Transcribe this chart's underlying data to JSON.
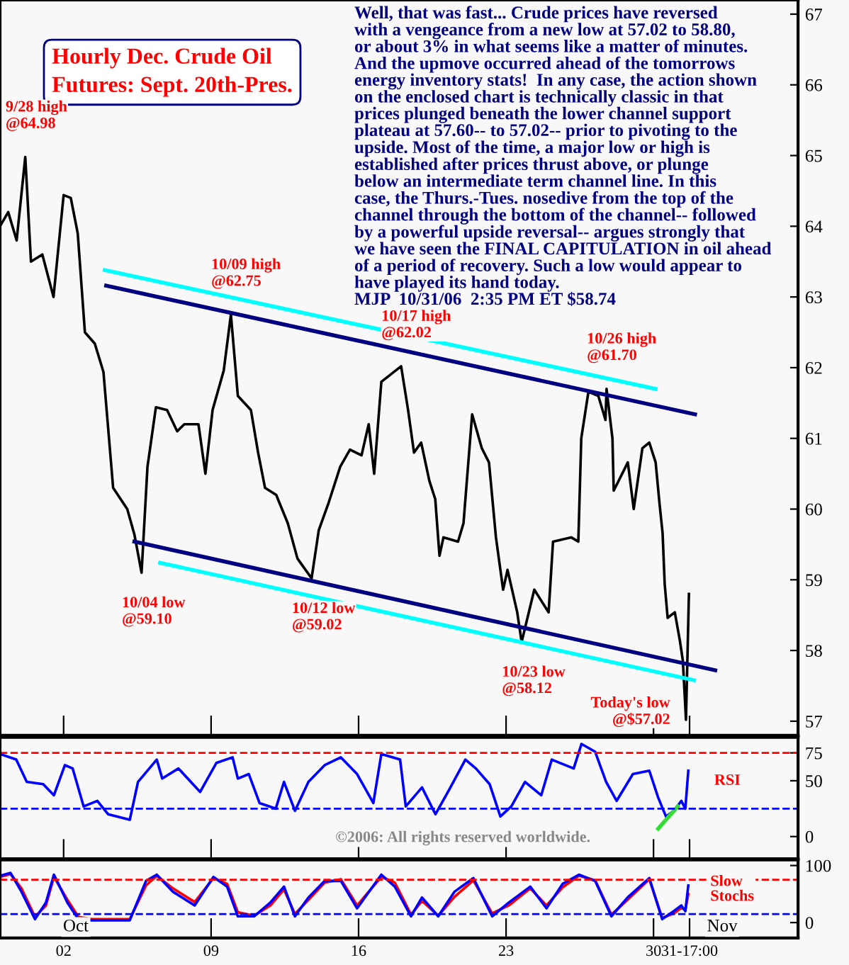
{
  "chart_data": [
    {
      "type": "line",
      "title": "Hourly Dec. Crude Oil\nFutures: Sept. 20th-Pres.",
      "xlim": [
        -1.02,
        36.86
      ],
      "ylim": [
        56.8,
        67.2
      ],
      "yticks": [
        57,
        58,
        59,
        60,
        61,
        62,
        63,
        64,
        65,
        66,
        67
      ],
      "tick_labels": "y",
      "xticks": [
        2,
        9,
        16,
        23,
        30,
        31.71
      ],
      "x": [
        -1.02,
        -0.63,
        -0.23,
        0.18,
        0.45,
        0.99,
        1.52,
        2,
        2.34,
        2.67,
        3.01,
        3.48,
        3.89,
        4.35,
        5.02,
        5.36,
        5.7,
        5.98,
        6.38,
        6.91,
        7.39,
        7.73,
        8.4,
        8.73,
        9.07,
        9.6,
        9.94,
        10.27,
        10.89,
        11.23,
        11.56,
        12.09,
        12.64,
        13.1,
        13.77,
        14.11,
        14.59,
        15.13,
        15.59,
        16.14,
        16.48,
        16.74,
        17.08,
        17.68,
        18.02,
        18.35,
        18.63,
        18.97,
        19.36,
        19.64,
        19.84,
        20.03,
        20.72,
        20.98,
        21.39,
        21.85,
        22.19,
        22.52,
        22.86,
        23.07,
        23.53,
        23.74,
        24.34,
        25.02,
        25.23,
        26.09,
        26.43,
        26.57,
        26.91,
        27.38,
        27.72,
        27.77,
        28.05,
        28.11,
        28.78,
        29.06,
        29.47,
        29.8,
        30.1,
        30.29,
        30.43,
        30.53,
        30.67,
        31.01,
        31.25,
        31.39,
        31.54,
        31.68
      ],
      "series": [
        {
          "color": "#000000",
          "values": [
            64.0,
            64.2,
            63.8,
            64.98,
            63.5,
            63.6,
            63.0,
            64.44,
            64.4,
            63.9,
            62.5,
            62.34,
            61.94,
            60.3,
            60.0,
            59.64,
            59.1,
            60.6,
            61.44,
            61.4,
            61.1,
            61.2,
            61.2,
            60.5,
            61.4,
            61.96,
            62.75,
            61.6,
            61.4,
            60.8,
            60.3,
            60.2,
            59.8,
            59.3,
            59.02,
            59.7,
            60.1,
            60.6,
            60.84,
            60.76,
            61.2,
            60.5,
            61.8,
            61.94,
            62.02,
            61.4,
            60.8,
            60.94,
            60.4,
            60.14,
            59.34,
            59.6,
            59.54,
            59.8,
            61.34,
            60.86,
            60.66,
            59.6,
            58.86,
            59.14,
            58.54,
            58.12,
            58.86,
            58.54,
            59.54,
            59.6,
            59.54,
            61.0,
            61.66,
            61.6,
            61.26,
            61.7,
            61.0,
            60.26,
            60.66,
            60.0,
            60.86,
            60.94,
            60.66,
            60.06,
            59.66,
            58.94,
            58.46,
            58.54,
            58.14,
            57.86,
            57.02,
            58.8
          ]
        },
        {
          "color": "#00ffff",
          "x": [
            3.95,
            30.1
          ],
          "values": [
            63.38,
            61.7
          ]
        },
        {
          "color": "#000080",
          "x": [
            4.02,
            31.97
          ],
          "values": [
            63.16,
            61.34
          ]
        },
        {
          "color": "#00ffff",
          "x": [
            6.58,
            31.92
          ],
          "values": [
            59.24,
            57.58
          ]
        },
        {
          "color": "#000080",
          "x": [
            5.36,
            32.93
          ],
          "values": [
            59.54,
            57.72
          ]
        }
      ],
      "annotations": [
        "Well, that was fast... Crude prices have reversed\nwith a vengeance from a new low at 57.02 to 58.80,\nor about 3% in what seems like a matter of minutes.\nAnd the upmove occurred ahead of the tomorrows\nenergy inventory stats!  In any case, the action shown\non the enclosed chart is technically classic in that\nprices plunged beneath the lower channel support\nplateau at 57.60-- to 57.02-- prior to pivoting to the\nupside. Most of the time, a major low or high is\nestablished after prices thrust above, or plunge\nbelow an intermediate term channel line. In this\ncase, the Thurs.-Tues. nosedive from the top of the\nchannel through the bottom of the channel-- followed\nby a powerful upside reversal-- argues strongly that\nwe have seen the FINAL CAPITULATION in oil ahead\nof a period of recovery. Such a low would appear to\nhave played its hand today.\nMJP  10/31/06  2:35 PM ET $58.74",
        {
          "text": "9/28 high\n@64.98",
          "x": 0.18,
          "y": 64.98
        },
        {
          "text": "10/04 low\n@59.10",
          "x": 5.7,
          "y": 59.1
        },
        {
          "text": "10/09 high\n@62.75",
          "x": 9.94,
          "y": 62.75
        },
        {
          "text": "10/12 low\n@59.02",
          "x": 13.77,
          "y": 59.02
        },
        {
          "text": "10/17 high\n@62.02",
          "x": 18.02,
          "y": 62.02
        },
        {
          "text": "10/23 low\n@58.12",
          "x": 23.74,
          "y": 58.12
        },
        {
          "text": "10/26 high\n@61.70",
          "x": 27.77,
          "y": 61.7
        },
        {
          "text": "Today's low\n@$57.02",
          "x": 31.54,
          "y": 57.02
        }
      ]
    },
    {
      "type": "line",
      "xlim": [
        -1.02,
        36.86
      ],
      "ylim": [
        -20,
        89
      ],
      "yticks": [
        0,
        50,
        75
      ],
      "tick_labels": "y",
      "xticks": [
        2,
        9,
        16,
        23,
        30,
        31.71
      ],
      "x": [
        -1.02,
        -0.25,
        0.25,
        1.03,
        1.54,
        2.06,
        2.43,
        2.95,
        3.6,
        4.11,
        5.14,
        5.53,
        6.42,
        6.68,
        7.45,
        8.48,
        9.25,
        10.02,
        10.27,
        10.79,
        11.3,
        12.07,
        12.46,
        12.98,
        13.62,
        14.39,
        15.16,
        15.93,
        16.7,
        17.08,
        17.97,
        18.24,
        19.01,
        19.65,
        20.3,
        21.07,
        21.57,
        22.22,
        22.73,
        23.25,
        23.9,
        24.67,
        25.17,
        26.21,
        26.58,
        27.23,
        27.75,
        28.25,
        29.02,
        29.8,
        30.22,
        30.59,
        30.96,
        31.32,
        31.51,
        31.65
      ],
      "series": [
        {
          "color": "#0000ff",
          "values": [
            74,
            69,
            49,
            47,
            37,
            64,
            61,
            27,
            32,
            20,
            15,
            49,
            69,
            52,
            61,
            40,
            66,
            71,
            52,
            56,
            30,
            25,
            49,
            23,
            49,
            64,
            71,
            56,
            30,
            74,
            69,
            27,
            44,
            20,
            42,
            69,
            61,
            47,
            18,
            27,
            49,
            37,
            69,
            61,
            83,
            76,
            49,
            32,
            56,
            59,
            35,
            18,
            23,
            32,
            25,
            59
          ]
        },
        {
          "color": "#33dd33",
          "x": [
            30.22,
            31.15
          ],
          "values": [
            7,
            27
          ]
        }
      ],
      "ref_lines": [
        {
          "axis": "y",
          "value": 75,
          "color": "#ff0000",
          "line_style": "dashed"
        },
        {
          "axis": "y",
          "value": 25,
          "color": "#0000ff",
          "line_style": "dashed"
        }
      ],
      "annotations": [
        "RSI",
        "©2006: All rights reserved worldwide."
      ]
    },
    {
      "type": "line",
      "xlim": [
        -1.02,
        36.86
      ],
      "ylim": [
        -27,
        110
      ],
      "yticks": [
        0,
        100
      ],
      "xticks": [
        {
          "value": 2,
          "label": "02"
        },
        {
          "value": 9,
          "label": "09"
        },
        16,
        23,
        30,
        {
          "value": 31.71,
          "label": "31-17:00"
        }
      ],
      "x": [
        -1.02,
        -0.52,
        0,
        0.64,
        1.16,
        1.54,
        2.18,
        2.7,
        3.34,
        5.14,
        5.91,
        6.42,
        7.19,
        8.22,
        9.11,
        9.76,
        10.27,
        11.04,
        11.81,
        12.46,
        12.98,
        13.62,
        14.39,
        15.16,
        15.93,
        17.08,
        17.72,
        18.49,
        19.01,
        19.78,
        20.55,
        21.45,
        22.34,
        23.13,
        24.15,
        24.92,
        25.69,
        26.46,
        27.23,
        28.0,
        28.77,
        29.8,
        30.41,
        30.96,
        31.32,
        31.51,
        31.65
      ],
      "series": [
        {
          "color": "#ff0000",
          "values": [
            80,
            85,
            60,
            10,
            30,
            80,
            40,
            10,
            6,
            6,
            65,
            82,
            60,
            36,
            78,
            68,
            18,
            12,
            30,
            58,
            15,
            40,
            70,
            76,
            30,
            80,
            70,
            14,
            38,
            12,
            45,
            74,
            16,
            30,
            60,
            30,
            62,
            82,
            74,
            14,
            40,
            76,
            8,
            16,
            26,
            22,
            50
          ]
        },
        {
          "color": "#0000ff",
          "values": [
            82,
            87,
            54,
            6,
            35,
            84,
            35,
            6,
            4,
            4,
            73,
            84,
            54,
            30,
            80,
            63,
            11,
            11,
            35,
            63,
            11,
            44,
            73,
            73,
            25,
            84,
            63,
            11,
            44,
            11,
            54,
            78,
            11,
            35,
            63,
            25,
            68,
            84,
            73,
            11,
            44,
            78,
            6,
            20,
            30,
            20,
            65
          ]
        }
      ],
      "ref_lines": [
        {
          "axis": "y",
          "value": 75,
          "color": "#ff0000",
          "line_style": "dashed"
        },
        {
          "axis": "y",
          "value": 15,
          "color": "#0000ff",
          "line_style": "dashed"
        }
      ],
      "annotations": [
        "Slow\nStochs",
        "Oct",
        "Nov"
      ]
    }
  ]
}
